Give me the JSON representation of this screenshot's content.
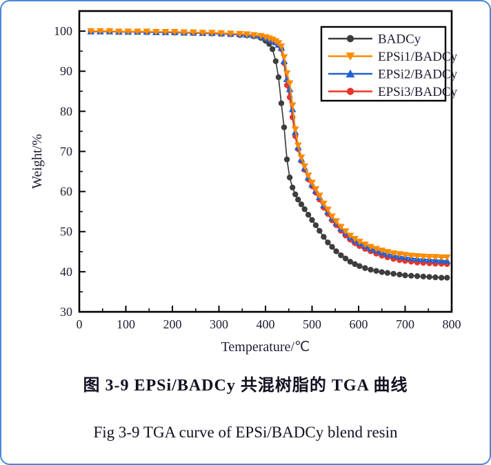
{
  "figure": {
    "frame_color": "#4a86d8",
    "background": "#ffffff"
  },
  "captions": {
    "chinese": "图 3-9  EPSi/BADCy 共混树脂的 TGA 曲线",
    "english": "Fig 3-9 TGA curve of EPSi/BADCy blend resin"
  },
  "chart_data": {
    "type": "line",
    "title": "",
    "xlabel": "Temperature/℃",
    "ylabel": "Weight/%",
    "xlim": [
      0,
      800
    ],
    "ylim": [
      30,
      105
    ],
    "x_ticks": [
      0,
      100,
      200,
      300,
      400,
      500,
      600,
      700,
      800
    ],
    "y_ticks": [
      30,
      40,
      50,
      60,
      70,
      80,
      90,
      100
    ],
    "x_minor_ticks": [
      50,
      150,
      250,
      350,
      450,
      550,
      650,
      750
    ],
    "y_minor_ticks": [
      35,
      45,
      55,
      65,
      75,
      85,
      95
    ],
    "grid": false,
    "legend_position": "top-right",
    "text_color": "#1d1d33",
    "axis_color": "#000000",
    "x": [
      25,
      45,
      65,
      85,
      105,
      125,
      145,
      165,
      185,
      205,
      225,
      245,
      265,
      285,
      305,
      325,
      345,
      360,
      375,
      390,
      400,
      408,
      415,
      422,
      428,
      434,
      440,
      446,
      452,
      458,
      464,
      470,
      477,
      484,
      492,
      500,
      508,
      516,
      525,
      534,
      543,
      552,
      562,
      572,
      582,
      592,
      602,
      614,
      626,
      638,
      650,
      662,
      675,
      688,
      700,
      713,
      726,
      739,
      752,
      765,
      778,
      790
    ],
    "series": [
      {
        "name": "BADCy",
        "color": "#3d3d3d",
        "marker": "circle",
        "values": [
          100.0,
          100.0,
          99.9,
          99.9,
          99.9,
          99.8,
          99.8,
          99.8,
          99.7,
          99.7,
          99.6,
          99.6,
          99.5,
          99.4,
          99.3,
          99.2,
          99.0,
          98.9,
          98.7,
          98.3,
          97.6,
          96.8,
          95.5,
          92.5,
          88.5,
          82.0,
          76.0,
          68.0,
          63.5,
          61.0,
          59.3,
          58.0,
          56.8,
          55.6,
          54.2,
          52.9,
          51.6,
          50.2,
          48.7,
          47.3,
          46.2,
          45.1,
          44.1,
          43.3,
          42.5,
          41.9,
          41.4,
          40.9,
          40.5,
          40.2,
          39.9,
          39.7,
          39.5,
          39.3,
          39.1,
          39.0,
          38.9,
          38.8,
          38.7,
          38.6,
          38.5,
          38.5
        ]
      },
      {
        "name": "EPSi1/BADCy",
        "color": "#ff8a00",
        "marker": "triangle-down",
        "values": [
          100.0,
          100.0,
          100.0,
          99.9,
          99.9,
          99.9,
          99.9,
          99.8,
          99.8,
          99.8,
          99.7,
          99.7,
          99.6,
          99.6,
          99.5,
          99.4,
          99.3,
          99.2,
          99.0,
          98.8,
          98.5,
          98.2,
          97.9,
          97.5,
          97.0,
          96.2,
          93.5,
          89.5,
          87.0,
          81.5,
          75.5,
          71.5,
          68.5,
          66.3,
          64.0,
          62.2,
          60.6,
          59.0,
          57.0,
          55.5,
          53.8,
          52.6,
          51.2,
          50.1,
          49.0,
          48.2,
          47.5,
          46.8,
          46.2,
          45.7,
          45.3,
          44.9,
          44.6,
          44.4,
          44.2,
          44.0,
          43.9,
          43.8,
          43.7,
          43.7,
          43.6,
          43.6
        ]
      },
      {
        "name": "EPSi2/BADCy",
        "color": "#2161d1",
        "marker": "triangle-up",
        "values": [
          99.9,
          99.9,
          99.9,
          99.8,
          99.8,
          99.8,
          99.8,
          99.7,
          99.7,
          99.7,
          99.6,
          99.6,
          99.5,
          99.5,
          99.4,
          99.3,
          99.2,
          99.1,
          98.9,
          98.7,
          98.3,
          98.0,
          97.6,
          97.2,
          96.6,
          95.8,
          92.5,
          88.0,
          85.5,
          80.5,
          74.8,
          71.0,
          68.0,
          65.8,
          63.5,
          61.8,
          60.2,
          58.6,
          56.6,
          55.0,
          53.4,
          52.2,
          50.8,
          49.7,
          48.6,
          47.8,
          47.1,
          46.4,
          45.8,
          45.3,
          44.8,
          44.4,
          44.1,
          43.8,
          43.6,
          43.4,
          43.2,
          43.1,
          43.0,
          42.9,
          42.8,
          42.7
        ]
      },
      {
        "name": "EPSi3/BADCy",
        "color": "#e8342a",
        "marker": "circle",
        "values": [
          99.9,
          99.9,
          99.9,
          99.8,
          99.8,
          99.8,
          99.7,
          99.7,
          99.7,
          99.6,
          99.6,
          99.5,
          99.5,
          99.4,
          99.3,
          99.2,
          99.1,
          99.0,
          98.8,
          98.6,
          98.2,
          97.9,
          97.5,
          97.1,
          96.5,
          95.5,
          92.0,
          86.5,
          83.5,
          78.5,
          73.8,
          70.6,
          67.6,
          65.4,
          63.0,
          61.3,
          59.7,
          58.0,
          56.0,
          54.4,
          52.8,
          51.6,
          50.2,
          49.0,
          48.0,
          47.1,
          46.4,
          45.7,
          45.1,
          44.5,
          44.0,
          43.6,
          43.2,
          42.9,
          42.7,
          42.5,
          42.3,
          42.2,
          42.1,
          42.0,
          42.0,
          41.9
        ]
      }
    ],
    "draw_order": [
      0,
      3,
      2,
      1
    ]
  }
}
